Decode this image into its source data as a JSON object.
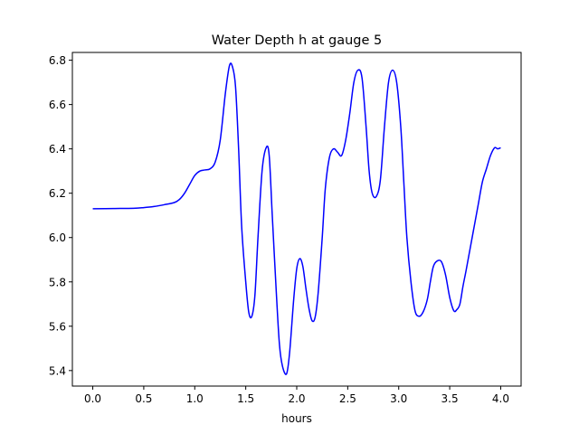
{
  "chart_data": {
    "type": "line",
    "title": "Water Depth h at gauge 5",
    "xlabel": "hours",
    "ylabel": "",
    "xlim": [
      -0.2,
      4.2
    ],
    "ylim": [
      5.33,
      6.835
    ],
    "x_ticks": [
      0.0,
      0.5,
      1.0,
      1.5,
      2.0,
      2.5,
      3.0,
      3.5,
      4.0
    ],
    "x_tick_labels": [
      "0.0",
      "0.5",
      "1.0",
      "1.5",
      "2.0",
      "2.5",
      "3.0",
      "3.5",
      "4.0"
    ],
    "y_ticks": [
      5.4,
      5.6,
      5.8,
      6.0,
      6.2,
      6.4,
      6.6,
      6.8
    ],
    "y_tick_labels": [
      "5.4",
      "5.6",
      "5.8",
      "6.0",
      "6.2",
      "6.4",
      "6.6",
      "6.8"
    ],
    "grid": false,
    "legend": "none",
    "colors": {
      "line": "#0000ff",
      "axes": "#000000",
      "background": "#ffffff"
    },
    "series": [
      {
        "color": "#0000ff",
        "x": [
          0.0,
          0.2,
          0.4,
          0.5,
          0.6,
          0.7,
          0.8,
          0.85,
          0.9,
          0.95,
          1.0,
          1.05,
          1.1,
          1.15,
          1.2,
          1.25,
          1.3,
          1.34,
          1.37,
          1.4,
          1.43,
          1.46,
          1.5,
          1.53,
          1.56,
          1.59,
          1.62,
          1.66,
          1.7,
          1.73,
          1.76,
          1.8,
          1.83,
          1.86,
          1.9,
          1.93,
          1.97,
          2.0,
          2.03,
          2.06,
          2.09,
          2.12,
          2.15,
          2.18,
          2.21,
          2.25,
          2.28,
          2.32,
          2.36,
          2.4,
          2.44,
          2.48,
          2.52,
          2.56,
          2.6,
          2.64,
          2.68,
          2.71,
          2.74,
          2.78,
          2.82,
          2.86,
          2.9,
          2.94,
          2.98,
          3.02,
          3.05,
          3.08,
          3.12,
          3.16,
          3.2,
          3.24,
          3.28,
          3.31,
          3.34,
          3.38,
          3.42,
          3.46,
          3.5,
          3.54,
          3.57,
          3.6,
          3.63,
          3.66,
          3.7,
          3.74,
          3.78,
          3.82,
          3.86,
          3.9,
          3.94,
          3.97,
          4.0
        ],
        "y": [
          6.13,
          6.131,
          6.132,
          6.135,
          6.14,
          6.148,
          6.158,
          6.172,
          6.2,
          6.24,
          6.28,
          6.3,
          6.305,
          6.31,
          6.34,
          6.44,
          6.65,
          6.775,
          6.77,
          6.68,
          6.4,
          6.05,
          5.8,
          5.662,
          5.645,
          5.74,
          6.0,
          6.3,
          6.405,
          6.37,
          6.1,
          5.75,
          5.52,
          5.42,
          5.385,
          5.48,
          5.72,
          5.86,
          5.905,
          5.87,
          5.77,
          5.68,
          5.625,
          5.64,
          5.75,
          6.0,
          6.22,
          6.36,
          6.4,
          6.385,
          6.37,
          6.44,
          6.56,
          6.7,
          6.755,
          6.72,
          6.5,
          6.3,
          6.2,
          6.185,
          6.26,
          6.5,
          6.7,
          6.755,
          6.7,
          6.5,
          6.25,
          6.0,
          5.8,
          5.67,
          5.645,
          5.665,
          5.72,
          5.8,
          5.87,
          5.895,
          5.89,
          5.83,
          5.73,
          5.67,
          5.675,
          5.7,
          5.78,
          5.85,
          5.95,
          6.05,
          6.15,
          6.25,
          6.31,
          6.37,
          6.405,
          6.4,
          6.405
        ]
      }
    ]
  }
}
